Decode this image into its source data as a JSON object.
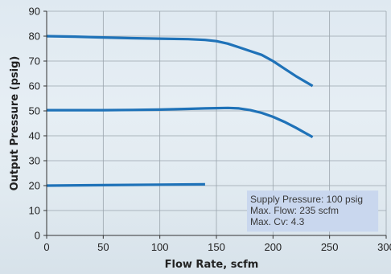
{
  "chart_data": {
    "type": "line",
    "xlabel": "Flow Rate, scfm",
    "ylabel": "Output Pressure (psig)",
    "xlim": [
      0,
      300
    ],
    "ylim": [
      0,
      90
    ],
    "xticks": [
      0,
      50,
      100,
      150,
      200,
      250,
      300
    ],
    "yticks": [
      0,
      10,
      20,
      30,
      40,
      50,
      60,
      70,
      80,
      90
    ],
    "grid": true,
    "line_color": "#1f72b8",
    "series": [
      {
        "x": [
          0,
          25,
          50,
          75,
          100,
          125,
          140,
          150,
          160,
          170,
          180,
          190,
          200,
          210,
          220,
          235
        ],
        "y": [
          80,
          79.8,
          79.5,
          79.2,
          79,
          78.8,
          78.5,
          78,
          77,
          75.5,
          74,
          72.5,
          70,
          67,
          64,
          60
        ]
      },
      {
        "x": [
          0,
          25,
          50,
          75,
          100,
          125,
          140,
          150,
          160,
          170,
          180,
          190,
          200,
          210,
          220,
          235
        ],
        "y": [
          50.3,
          50.3,
          50.3,
          50.4,
          50.5,
          50.8,
          51,
          51.1,
          51.2,
          51,
          50.3,
          49.2,
          47.6,
          45.6,
          43.3,
          39.5
        ]
      },
      {
        "x": [
          0,
          50,
          100,
          140
        ],
        "y": [
          20,
          20.2,
          20.4,
          20.5
        ]
      }
    ],
    "annotation": {
      "lines": [
        "Supply Pressure: 100 psig",
        "Max. Flow: 235 scfm",
        "Max. Cv: 4.3"
      ],
      "background": "#c9d7ee",
      "x_range": [
        177,
        293
      ],
      "y_range": [
        1.5,
        18
      ]
    }
  }
}
